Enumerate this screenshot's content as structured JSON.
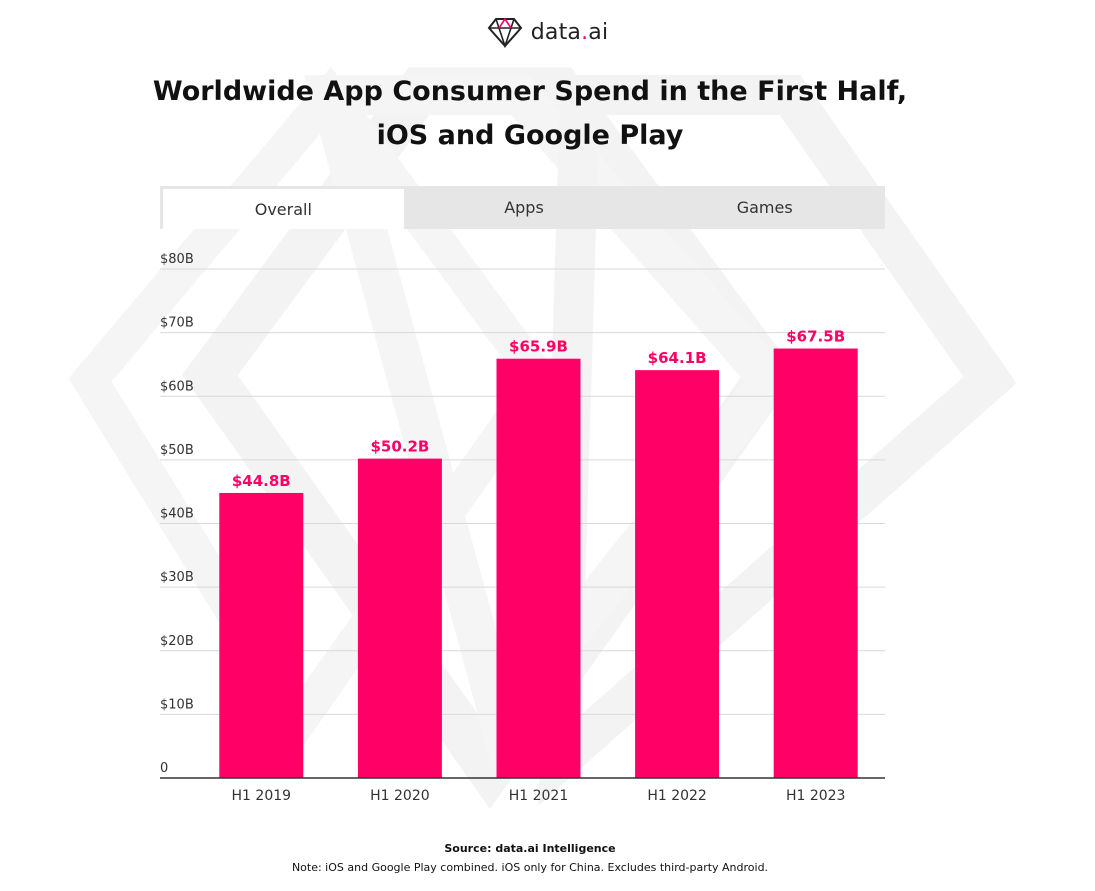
{
  "logo": {
    "icon": "diamond-icon",
    "name_prefix": "data",
    "name_dot": ".",
    "name_suffix": "ai"
  },
  "header": {
    "title_line1": "Worldwide App Consumer Spend in the First Half,",
    "title_line2": "iOS and Google Play"
  },
  "tabs": [
    {
      "label": "Overall",
      "active": true
    },
    {
      "label": "Apps",
      "active": false
    },
    {
      "label": "Games",
      "active": false
    }
  ],
  "colors": {
    "accent": "#ff0066",
    "grid": "#d9d9d9",
    "axis": "#333333",
    "tab_bg": "#e6e6e6"
  },
  "chart_data": {
    "type": "bar",
    "title": "Worldwide App Consumer Spend in the First Half, iOS and Google Play",
    "categories": [
      "H1 2019",
      "H1 2020",
      "H1 2021",
      "H1 2022",
      "H1 2023"
    ],
    "values": [
      44.8,
      50.2,
      65.9,
      64.1,
      67.5
    ],
    "value_labels": [
      "$44.8B",
      "$50.2B",
      "$65.9B",
      "$64.1B",
      "$67.5B"
    ],
    "ylim": [
      0,
      80
    ],
    "yticks": [
      0,
      10,
      20,
      30,
      40,
      50,
      60,
      70,
      80
    ],
    "ytick_labels": [
      "0",
      "$10B",
      "$20B",
      "$30B",
      "$40B",
      "$50B",
      "$60B",
      "$70B",
      "$80B"
    ],
    "xlabel": "",
    "ylabel": "",
    "grid": true,
    "legend": "none"
  },
  "footer": {
    "source": "Source: data.ai Intelligence",
    "note": "Note: iOS and Google Play combined. iOS only for China. Excludes third-party Android."
  }
}
